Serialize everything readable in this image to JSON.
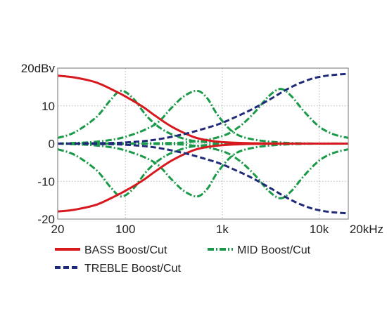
{
  "chart_data": {
    "type": "line",
    "title": "",
    "xlabel": "",
    "ylabel": "",
    "x_scale": "log",
    "grid": true,
    "legend_position": "bottom",
    "xlim": [
      20,
      20000
    ],
    "ylim": [
      -20,
      20
    ],
    "x_ticks": [
      20,
      100,
      1000,
      10000,
      20000
    ],
    "x_tick_labels": [
      "20",
      "100",
      "1k",
      "10k",
      "20kHz"
    ],
    "y_ticks": [
      20,
      10,
      0,
      -10,
      -20
    ],
    "y_tick_labels": [
      "20dBv",
      "10",
      "0",
      "-10",
      "-20"
    ],
    "colors": {
      "bass": "#d7191f",
      "mid": "#1a9a48",
      "treble": "#1f2a78"
    },
    "series": [
      {
        "name": "BASS Boost/Cut",
        "color": "#d7191f",
        "dash": "solid",
        "curves": [
          {
            "x": [
              20,
              30,
              50,
              80,
              100,
              150,
              200,
              300,
              500,
              700,
              1000,
              2000,
              5000,
              20000
            ],
            "y": [
              18,
              17.5,
              16.2,
              13.8,
              12.5,
              9.8,
              7.5,
              4.5,
              1.8,
              0.9,
              0.4,
              0.1,
              0,
              0
            ]
          },
          {
            "x": [
              20,
              30,
              50,
              80,
              100,
              150,
              200,
              300,
              500,
              700,
              1000,
              2000,
              5000,
              20000
            ],
            "y": [
              -18,
              -17.5,
              -16.2,
              -13.8,
              -12.5,
              -9.8,
              -7.5,
              -4.5,
              -1.8,
              -0.9,
              -0.4,
              -0.1,
              0,
              0
            ]
          }
        ]
      },
      {
        "name": "MID Boost/Cut",
        "color": "#1a9a48",
        "dash": "dashdot",
        "curves": [
          {
            "x": [
              20,
              30,
              50,
              70,
              90,
              120,
              170,
              250,
              400,
              600,
              1000,
              2000,
              5000,
              20000
            ],
            "y": [
              1.5,
              3,
              7,
              11.5,
              14,
              12,
              7,
              3.5,
              1.3,
              0.5,
              0.2,
              0,
              0,
              0
            ]
          },
          {
            "x": [
              20,
              30,
              50,
              70,
              90,
              120,
              170,
              250,
              400,
              600,
              1000,
              2000,
              5000,
              20000
            ],
            "y": [
              -1.5,
              -3,
              -7,
              -11.5,
              -14,
              -12,
              -7,
              -3.5,
              -1.3,
              -0.5,
              -0.2,
              0,
              0,
              0
            ]
          },
          {
            "x": [
              20,
              50,
              100,
              200,
              300,
              400,
              550,
              700,
              900,
              1300,
              2000,
              4000,
              10000,
              20000
            ],
            "y": [
              0,
              0.5,
              1.8,
              5,
              9.5,
              12.5,
              14,
              12,
              7.5,
              3,
              1.2,
              0.3,
              0,
              0
            ]
          },
          {
            "x": [
              20,
              50,
              100,
              200,
              300,
              400,
              550,
              700,
              900,
              1300,
              2000,
              4000,
              10000,
              20000
            ],
            "y": [
              0,
              -0.5,
              -1.8,
              -5,
              -9.5,
              -12.5,
              -14,
              -12,
              -7.5,
              -3,
              -1.2,
              -0.3,
              0,
              0
            ]
          },
          {
            "x": [
              20,
              200,
              500,
              1000,
              1500,
              2200,
              3000,
              4000,
              5200,
              7000,
              10000,
              14000,
              20000
            ],
            "y": [
              0,
              0.1,
              0.5,
              2,
              4.5,
              8.5,
              12.5,
              14.5,
              12.5,
              8.5,
              4.5,
              2.5,
              1.5
            ]
          },
          {
            "x": [
              20,
              200,
              500,
              1000,
              1500,
              2200,
              3000,
              4000,
              5200,
              7000,
              10000,
              14000,
              20000
            ],
            "y": [
              0,
              -0.1,
              -0.5,
              -2,
              -4.5,
              -8.5,
              -12.5,
              -14.5,
              -12.5,
              -8.5,
              -4.5,
              -2.5,
              -1.5
            ]
          }
        ]
      },
      {
        "name": "TREBLE Boost/Cut",
        "color": "#1f2a78",
        "dash": "dashed",
        "curves": [
          {
            "x": [
              20,
              50,
              100,
              200,
              400,
              700,
              1000,
              1500,
              2000,
              3000,
              5000,
              8000,
              12000,
              20000
            ],
            "y": [
              0,
              0.1,
              0.3,
              1,
              2.5,
              4.2,
              5.5,
              7.5,
              9,
              11.5,
              14.8,
              17,
              18,
              18.5
            ]
          },
          {
            "x": [
              20,
              50,
              100,
              200,
              400,
              700,
              1000,
              1500,
              2000,
              3000,
              5000,
              8000,
              12000,
              20000
            ],
            "y": [
              0,
              -0.1,
              -0.3,
              -1,
              -2.5,
              -4.2,
              -5.5,
              -7.5,
              -9,
              -11.5,
              -14.8,
              -17,
              -18,
              -18.5
            ]
          }
        ]
      }
    ],
    "legend": [
      {
        "label": "BASS Boost/Cut",
        "color": "#d7191f",
        "dash": "solid"
      },
      {
        "label": "MID Boost/Cut",
        "color": "#1a9a48",
        "dash": "dashdot"
      },
      {
        "label": "TREBLE Boost/Cut",
        "color": "#1f2a78",
        "dash": "dashed"
      }
    ]
  }
}
